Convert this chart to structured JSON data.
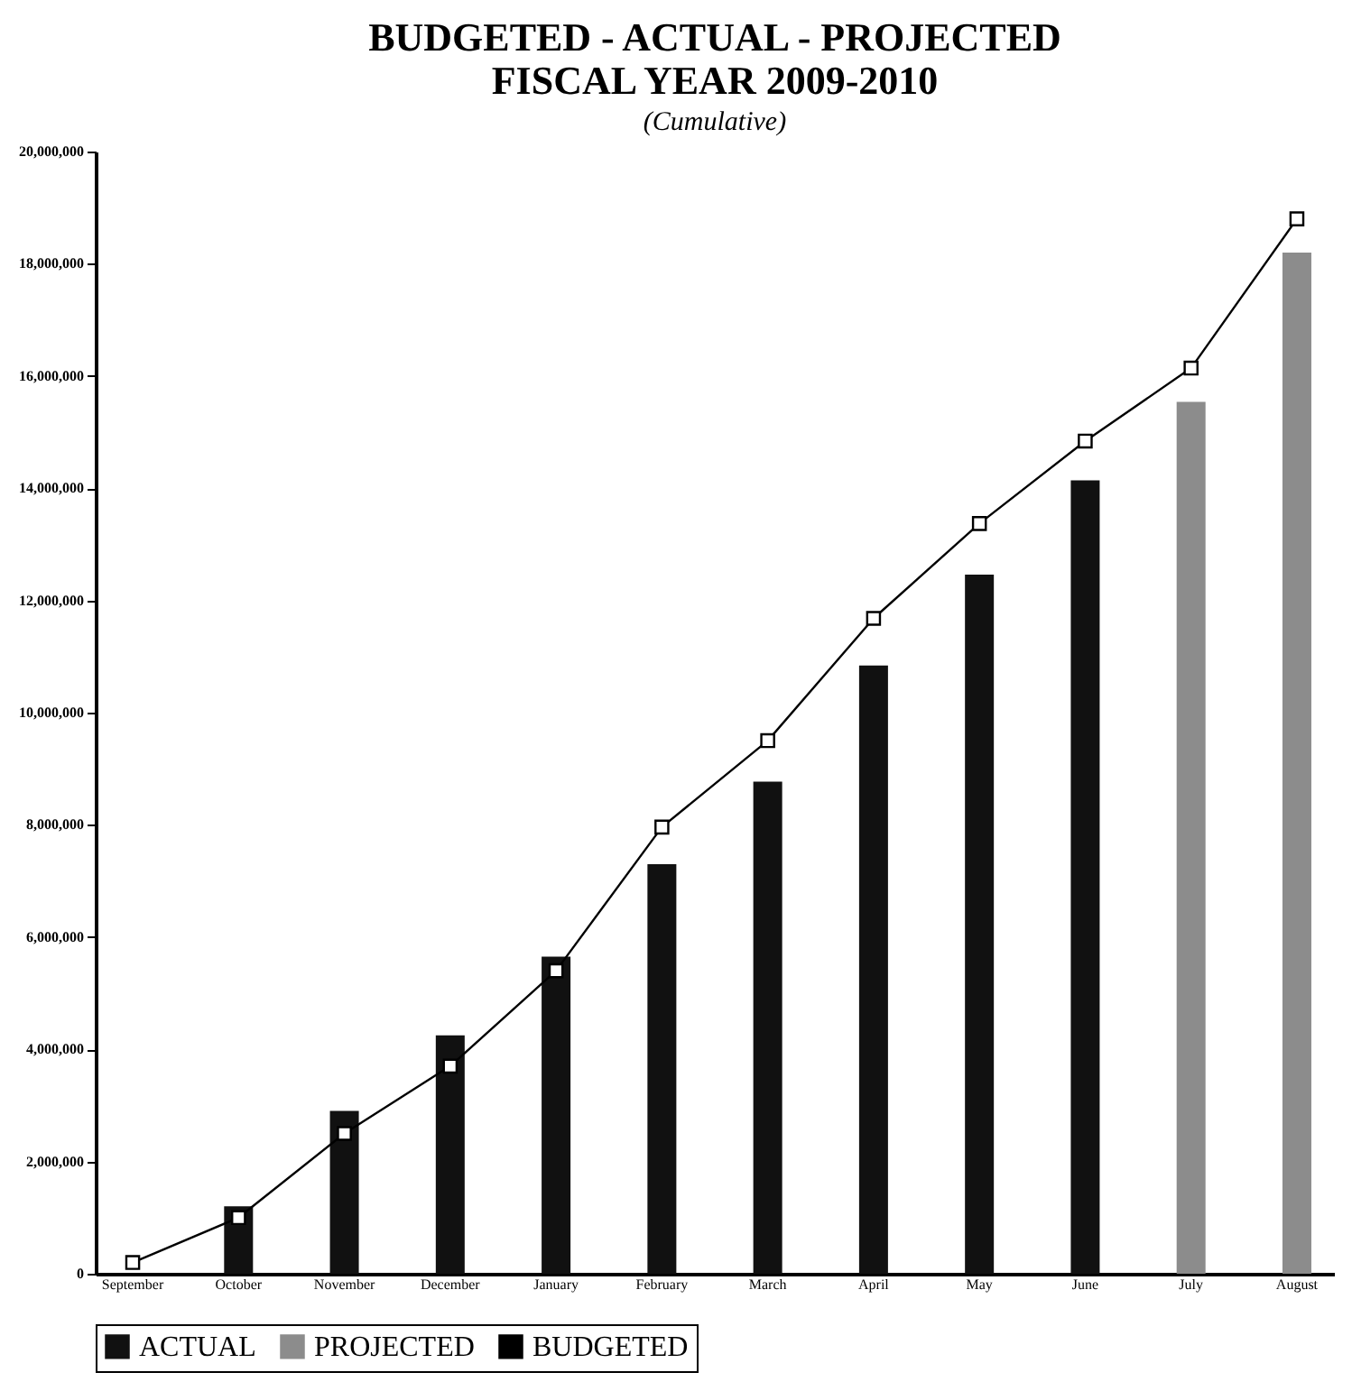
{
  "chart_data": {
    "type": "bar",
    "title": [
      "BUDGETED - ACTUAL - PROJECTED",
      "FISCAL YEAR 2009-2010"
    ],
    "subtitle": "(Cumulative)",
    "categories": [
      "September",
      "October",
      "November",
      "December",
      "January",
      "February",
      "March",
      "April",
      "May",
      "June",
      "July",
      "August"
    ],
    "series": [
      {
        "name": "ACTUAL",
        "color": "#111111",
        "values": [
          null,
          1200000,
          2900000,
          4250000,
          5650000,
          7300000,
          8770000,
          10840000,
          12460000,
          14140000,
          null,
          null
        ]
      },
      {
        "name": "PROJECTED",
        "color": "#8c8c8c",
        "values": [
          null,
          null,
          null,
          null,
          null,
          null,
          null,
          null,
          null,
          null,
          15540000,
          18200000
        ]
      },
      {
        "name": "BUDGETED",
        "type": "line",
        "color": "#000000",
        "marker": "square",
        "values": [
          200000,
          1000000,
          2500000,
          3700000,
          5400000,
          7960000,
          9500000,
          11680000,
          13370000,
          14840000,
          16140000,
          18800000
        ]
      }
    ],
    "ylim": [
      0,
      20000000
    ],
    "yticks": [
      0,
      {
        "value": 2000000,
        "label": "2,000,000"
      },
      {
        "value": 4000000,
        "label": "4,000,000"
      },
      {
        "value": 6000000,
        "label": "6,000,000"
      },
      {
        "value": 8000000,
        "label": "8,000,000"
      },
      {
        "value": 10000000,
        "label": "10,000,000"
      },
      {
        "value": 12000000,
        "label": "12,000,000"
      },
      {
        "value": 14000000,
        "label": "14,000,000"
      },
      {
        "value": 16000000,
        "label": "16,000,000"
      },
      {
        "value": 18000000,
        "label": "18,000,000"
      },
      {
        "value": 20000000,
        "label": "20,000,000"
      }
    ],
    "grid": false,
    "legend": "bottom"
  }
}
